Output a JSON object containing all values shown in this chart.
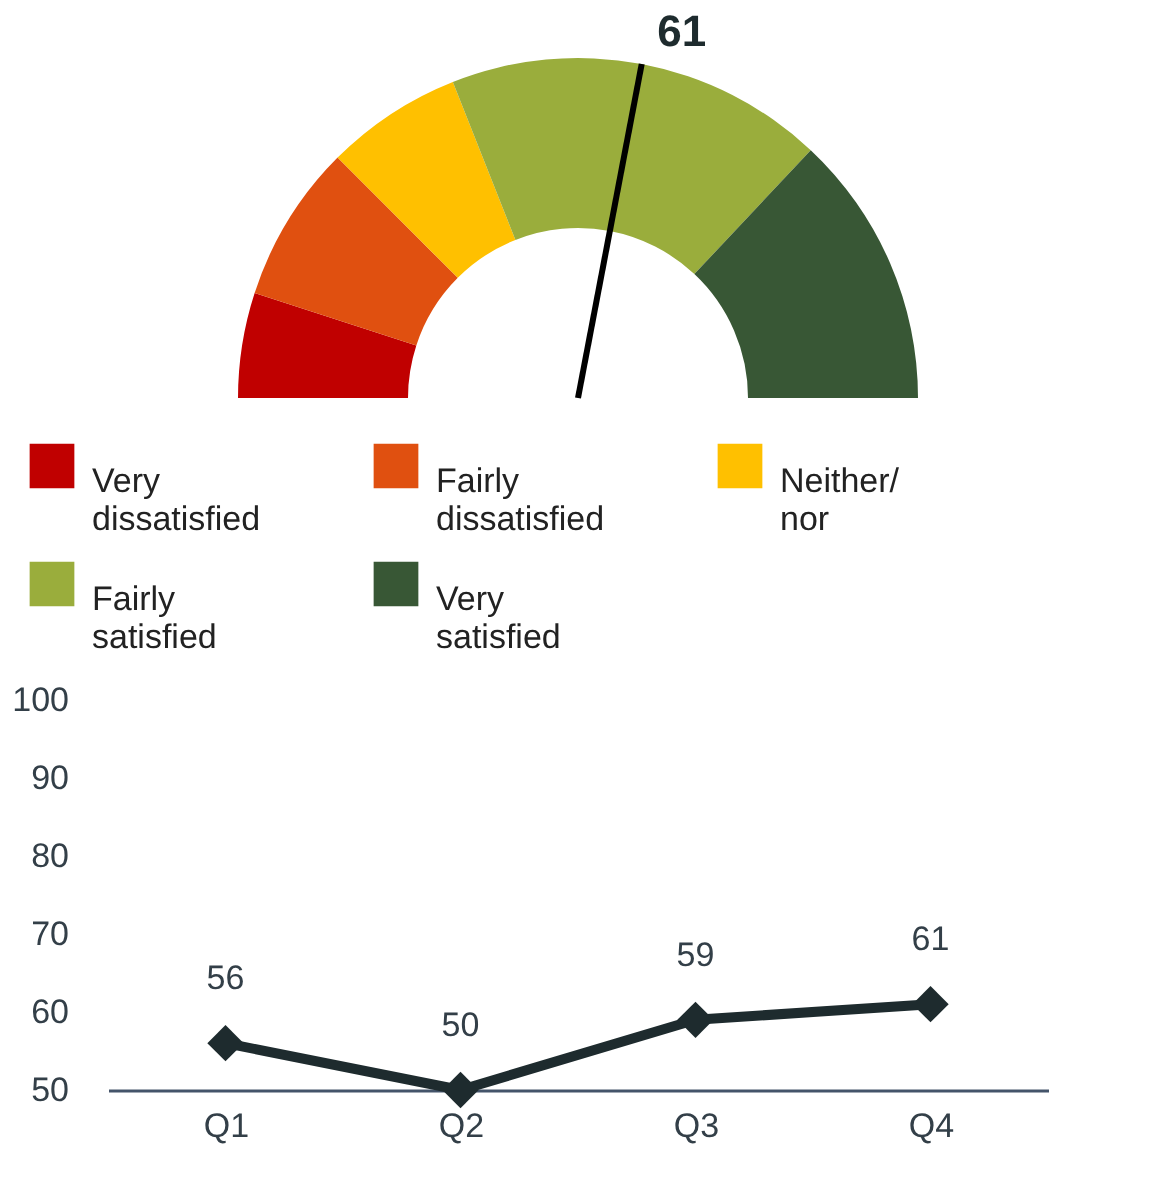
{
  "chart_data": [
    {
      "type": "donut",
      "categories": [
        "Very dissatisfied",
        "Fairly dissatisfied",
        "Neither/ nor",
        "Fairly satisfied",
        "Very satisfied"
      ],
      "values": [
        10,
        15,
        13,
        36,
        26
      ],
      "colors": [
        "#c00000",
        "#e05010",
        "#ffc000",
        "#9aad3c",
        "#385735"
      ],
      "needle": "Fairly satisfied",
      "legend": "bottom",
      "annotations": [
        "61"
      ]
    },
    {
      "type": "line",
      "categories": [
        "Q1",
        "Q2",
        "Q3",
        "Q4"
      ],
      "series": [
        {
          "color": "#1e2b2e",
          "values": [
            56,
            50,
            59,
            61
          ]
        }
      ],
      "ylim": [
        50,
        100
      ],
      "yticks": [
        50,
        60,
        70,
        80,
        90,
        100
      ],
      "grid": false,
      "marker": "diamond",
      "line_style": "solid",
      "data_labels": true,
      "legend": false
    }
  ]
}
